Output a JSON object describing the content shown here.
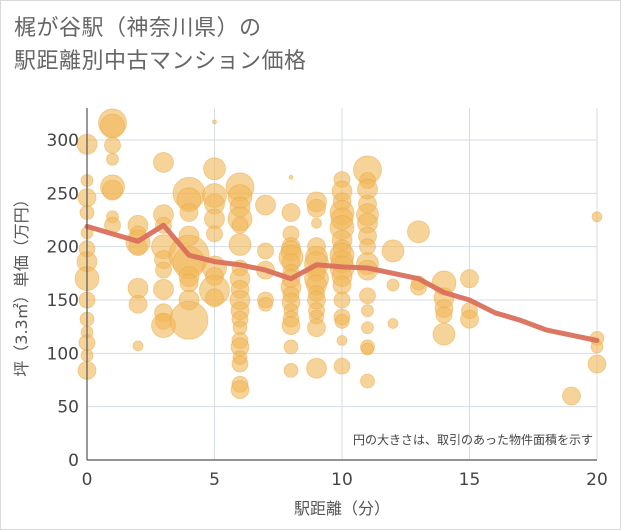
{
  "title": {
    "line1": "梶が谷駅（神奈川県）の",
    "line2": "駅距離別中古マンション価格"
  },
  "chart_data": {
    "type": "scatter",
    "xlabel": "駅距離（分）",
    "ylabel": "坪（3.3㎡）単価（万円）",
    "xlim": [
      0,
      20
    ],
    "ylim": [
      0,
      330
    ],
    "x_ticks": [
      0,
      5,
      10,
      15,
      20
    ],
    "y_ticks": [
      0,
      50,
      100,
      150,
      200,
      250,
      300
    ],
    "grid": true,
    "annotation": "円の大きさは、取引のあった物件面積を示す",
    "colors": {
      "bubble": "#f0b85a",
      "line": "#d9705a",
      "grid": "#d6dde6",
      "axis": "#555555"
    },
    "bubbles": [
      {
        "x": 0,
        "y": 296,
        "s": 10
      },
      {
        "x": 0,
        "y": 262,
        "s": 6
      },
      {
        "x": 0,
        "y": 246,
        "s": 9
      },
      {
        "x": 0,
        "y": 232,
        "s": 7
      },
      {
        "x": 0,
        "y": 213,
        "s": 6
      },
      {
        "x": 0,
        "y": 198,
        "s": 8
      },
      {
        "x": 0,
        "y": 186,
        "s": 10
      },
      {
        "x": 0,
        "y": 170,
        "s": 12
      },
      {
        "x": 0,
        "y": 150,
        "s": 8
      },
      {
        "x": 0,
        "y": 132,
        "s": 7
      },
      {
        "x": 0,
        "y": 120,
        "s": 6
      },
      {
        "x": 0,
        "y": 110,
        "s": 8
      },
      {
        "x": 0,
        "y": 98,
        "s": 6
      },
      {
        "x": 0,
        "y": 84,
        "s": 9
      },
      {
        "x": 1,
        "y": 316,
        "s": 14
      },
      {
        "x": 1,
        "y": 313,
        "s": 12
      },
      {
        "x": 1,
        "y": 295,
        "s": 8
      },
      {
        "x": 1,
        "y": 282,
        "s": 6
      },
      {
        "x": 1,
        "y": 256,
        "s": 12
      },
      {
        "x": 1,
        "y": 253,
        "s": 10
      },
      {
        "x": 1,
        "y": 228,
        "s": 6
      },
      {
        "x": 1,
        "y": 220,
        "s": 8
      },
      {
        "x": 2,
        "y": 220,
        "s": 10
      },
      {
        "x": 2,
        "y": 212,
        "s": 8
      },
      {
        "x": 2,
        "y": 204,
        "s": 12
      },
      {
        "x": 2,
        "y": 200,
        "s": 9
      },
      {
        "x": 2,
        "y": 161,
        "s": 10
      },
      {
        "x": 2,
        "y": 146,
        "s": 9
      },
      {
        "x": 2,
        "y": 107,
        "s": 5
      },
      {
        "x": 3,
        "y": 279,
        "s": 10
      },
      {
        "x": 3,
        "y": 230,
        "s": 10
      },
      {
        "x": 3,
        "y": 220,
        "s": 8
      },
      {
        "x": 3,
        "y": 200,
        "s": 12
      },
      {
        "x": 3,
        "y": 188,
        "s": 9
      },
      {
        "x": 3,
        "y": 178,
        "s": 8
      },
      {
        "x": 3,
        "y": 160,
        "s": 10
      },
      {
        "x": 3,
        "y": 138,
        "s": 9
      },
      {
        "x": 3,
        "y": 130,
        "s": 8
      },
      {
        "x": 3,
        "y": 126,
        "s": 12
      },
      {
        "x": 4,
        "y": 250,
        "s": 16
      },
      {
        "x": 4,
        "y": 244,
        "s": 12
      },
      {
        "x": 4,
        "y": 232,
        "s": 9
      },
      {
        "x": 4,
        "y": 210,
        "s": 10
      },
      {
        "x": 4,
        "y": 192,
        "s": 20
      },
      {
        "x": 4,
        "y": 185,
        "s": 16
      },
      {
        "x": 4,
        "y": 172,
        "s": 10
      },
      {
        "x": 4,
        "y": 166,
        "s": 9
      },
      {
        "x": 4,
        "y": 150,
        "s": 10
      },
      {
        "x": 4,
        "y": 131,
        "s": 19
      },
      {
        "x": 5,
        "y": 317,
        "s": 2
      },
      {
        "x": 5,
        "y": 273,
        "s": 11
      },
      {
        "x": 5,
        "y": 248,
        "s": 12
      },
      {
        "x": 5,
        "y": 240,
        "s": 10
      },
      {
        "x": 5,
        "y": 226,
        "s": 10
      },
      {
        "x": 5,
        "y": 212,
        "s": 8
      },
      {
        "x": 5,
        "y": 180,
        "s": 12
      },
      {
        "x": 5,
        "y": 172,
        "s": 9
      },
      {
        "x": 5,
        "y": 159,
        "s": 15
      },
      {
        "x": 5,
        "y": 152,
        "s": 9
      },
      {
        "x": 6,
        "y": 256,
        "s": 14
      },
      {
        "x": 6,
        "y": 247,
        "s": 12
      },
      {
        "x": 6,
        "y": 237,
        "s": 10
      },
      {
        "x": 6,
        "y": 226,
        "s": 12
      },
      {
        "x": 6,
        "y": 220,
        "s": 8
      },
      {
        "x": 6,
        "y": 202,
        "s": 11
      },
      {
        "x": 6,
        "y": 180,
        "s": 8
      },
      {
        "x": 6,
        "y": 170,
        "s": 10
      },
      {
        "x": 6,
        "y": 160,
        "s": 9
      },
      {
        "x": 6,
        "y": 150,
        "s": 10
      },
      {
        "x": 6,
        "y": 140,
        "s": 9
      },
      {
        "x": 6,
        "y": 132,
        "s": 8
      },
      {
        "x": 6,
        "y": 124,
        "s": 7
      },
      {
        "x": 6,
        "y": 112,
        "s": 8
      },
      {
        "x": 6,
        "y": 106,
        "s": 9
      },
      {
        "x": 6,
        "y": 96,
        "s": 7
      },
      {
        "x": 6,
        "y": 90,
        "s": 8
      },
      {
        "x": 6,
        "y": 71,
        "s": 8
      },
      {
        "x": 6,
        "y": 66,
        "s": 9
      },
      {
        "x": 7,
        "y": 239,
        "s": 10
      },
      {
        "x": 7,
        "y": 196,
        "s": 8
      },
      {
        "x": 7,
        "y": 178,
        "s": 9
      },
      {
        "x": 7,
        "y": 150,
        "s": 8
      },
      {
        "x": 7,
        "y": 146,
        "s": 7
      },
      {
        "x": 8,
        "y": 265,
        "s": 2
      },
      {
        "x": 8,
        "y": 232,
        "s": 9
      },
      {
        "x": 8,
        "y": 212,
        "s": 8
      },
      {
        "x": 8,
        "y": 200,
        "s": 9
      },
      {
        "x": 8,
        "y": 196,
        "s": 10
      },
      {
        "x": 8,
        "y": 190,
        "s": 12
      },
      {
        "x": 8,
        "y": 185,
        "s": 9
      },
      {
        "x": 8,
        "y": 176,
        "s": 8
      },
      {
        "x": 8,
        "y": 170,
        "s": 9
      },
      {
        "x": 8,
        "y": 162,
        "s": 10
      },
      {
        "x": 8,
        "y": 155,
        "s": 8
      },
      {
        "x": 8,
        "y": 148,
        "s": 9
      },
      {
        "x": 8,
        "y": 140,
        "s": 7
      },
      {
        "x": 8,
        "y": 132,
        "s": 8
      },
      {
        "x": 8,
        "y": 126,
        "s": 9
      },
      {
        "x": 8,
        "y": 106,
        "s": 7
      },
      {
        "x": 8,
        "y": 84,
        "s": 7
      },
      {
        "x": 9,
        "y": 242,
        "s": 10
      },
      {
        "x": 9,
        "y": 236,
        "s": 9
      },
      {
        "x": 9,
        "y": 222,
        "s": 5
      },
      {
        "x": 9,
        "y": 200,
        "s": 9
      },
      {
        "x": 9,
        "y": 190,
        "s": 11
      },
      {
        "x": 9,
        "y": 184,
        "s": 12
      },
      {
        "x": 9,
        "y": 176,
        "s": 9
      },
      {
        "x": 9,
        "y": 170,
        "s": 12
      },
      {
        "x": 9,
        "y": 164,
        "s": 10
      },
      {
        "x": 9,
        "y": 156,
        "s": 8
      },
      {
        "x": 9,
        "y": 150,
        "s": 9
      },
      {
        "x": 9,
        "y": 140,
        "s": 8
      },
      {
        "x": 9,
        "y": 134,
        "s": 7
      },
      {
        "x": 9,
        "y": 124,
        "s": 9
      },
      {
        "x": 9,
        "y": 86,
        "s": 10
      },
      {
        "x": 10,
        "y": 263,
        "s": 8
      },
      {
        "x": 10,
        "y": 252,
        "s": 10
      },
      {
        "x": 10,
        "y": 242,
        "s": 9
      },
      {
        "x": 10,
        "y": 232,
        "s": 12
      },
      {
        "x": 10,
        "y": 226,
        "s": 11
      },
      {
        "x": 10,
        "y": 218,
        "s": 12
      },
      {
        "x": 10,
        "y": 206,
        "s": 10
      },
      {
        "x": 10,
        "y": 198,
        "s": 9
      },
      {
        "x": 10,
        "y": 192,
        "s": 12
      },
      {
        "x": 10,
        "y": 186,
        "s": 11
      },
      {
        "x": 10,
        "y": 180,
        "s": 12
      },
      {
        "x": 10,
        "y": 172,
        "s": 10
      },
      {
        "x": 10,
        "y": 164,
        "s": 9
      },
      {
        "x": 10,
        "y": 150,
        "s": 8
      },
      {
        "x": 10,
        "y": 134,
        "s": 8
      },
      {
        "x": 10,
        "y": 130,
        "s": 7
      },
      {
        "x": 10,
        "y": 112,
        "s": 5
      },
      {
        "x": 10,
        "y": 88,
        "s": 8
      },
      {
        "x": 11,
        "y": 272,
        "s": 14
      },
      {
        "x": 11,
        "y": 262,
        "s": 8
      },
      {
        "x": 11,
        "y": 254,
        "s": 10
      },
      {
        "x": 11,
        "y": 240,
        "s": 9
      },
      {
        "x": 11,
        "y": 230,
        "s": 11
      },
      {
        "x": 11,
        "y": 222,
        "s": 10
      },
      {
        "x": 11,
        "y": 210,
        "s": 9
      },
      {
        "x": 11,
        "y": 200,
        "s": 8
      },
      {
        "x": 11,
        "y": 184,
        "s": 11
      },
      {
        "x": 11,
        "y": 178,
        "s": 10
      },
      {
        "x": 11,
        "y": 154,
        "s": 8
      },
      {
        "x": 11,
        "y": 140,
        "s": 6
      },
      {
        "x": 11,
        "y": 124,
        "s": 6
      },
      {
        "x": 11,
        "y": 106,
        "s": 7
      },
      {
        "x": 11,
        "y": 104,
        "s": 6
      },
      {
        "x": 11,
        "y": 74,
        "s": 7
      },
      {
        "x": 12,
        "y": 196,
        "s": 11
      },
      {
        "x": 12,
        "y": 164,
        "s": 6
      },
      {
        "x": 12,
        "y": 128,
        "s": 5
      },
      {
        "x": 13,
        "y": 214,
        "s": 11
      },
      {
        "x": 13,
        "y": 162,
        "s": 8
      },
      {
        "x": 13,
        "y": 166,
        "s": 7
      },
      {
        "x": 14,
        "y": 166,
        "s": 12
      },
      {
        "x": 14,
        "y": 152,
        "s": 10
      },
      {
        "x": 14,
        "y": 142,
        "s": 9
      },
      {
        "x": 14,
        "y": 136,
        "s": 8
      },
      {
        "x": 14,
        "y": 118,
        "s": 11
      },
      {
        "x": 15,
        "y": 170,
        "s": 9
      },
      {
        "x": 15,
        "y": 140,
        "s": 8
      },
      {
        "x": 15,
        "y": 132,
        "s": 9
      },
      {
        "x": 19,
        "y": 60,
        "s": 9
      },
      {
        "x": 20,
        "y": 228,
        "s": 5
      },
      {
        "x": 20,
        "y": 114,
        "s": 7
      },
      {
        "x": 20,
        "y": 106,
        "s": 6
      },
      {
        "x": 20,
        "y": 90,
        "s": 9
      }
    ],
    "series": [
      {
        "type": "line",
        "x": [
          0,
          1,
          2,
          3,
          4,
          5,
          6,
          7,
          8,
          9,
          10,
          11,
          12,
          13,
          14,
          15,
          16,
          17,
          18,
          19,
          20
        ],
        "values": [
          219,
          212,
          205,
          220,
          192,
          186,
          183,
          178,
          170,
          183,
          181,
          180,
          175,
          170,
          157,
          150,
          138,
          131,
          122,
          117,
          112
        ]
      }
    ]
  }
}
